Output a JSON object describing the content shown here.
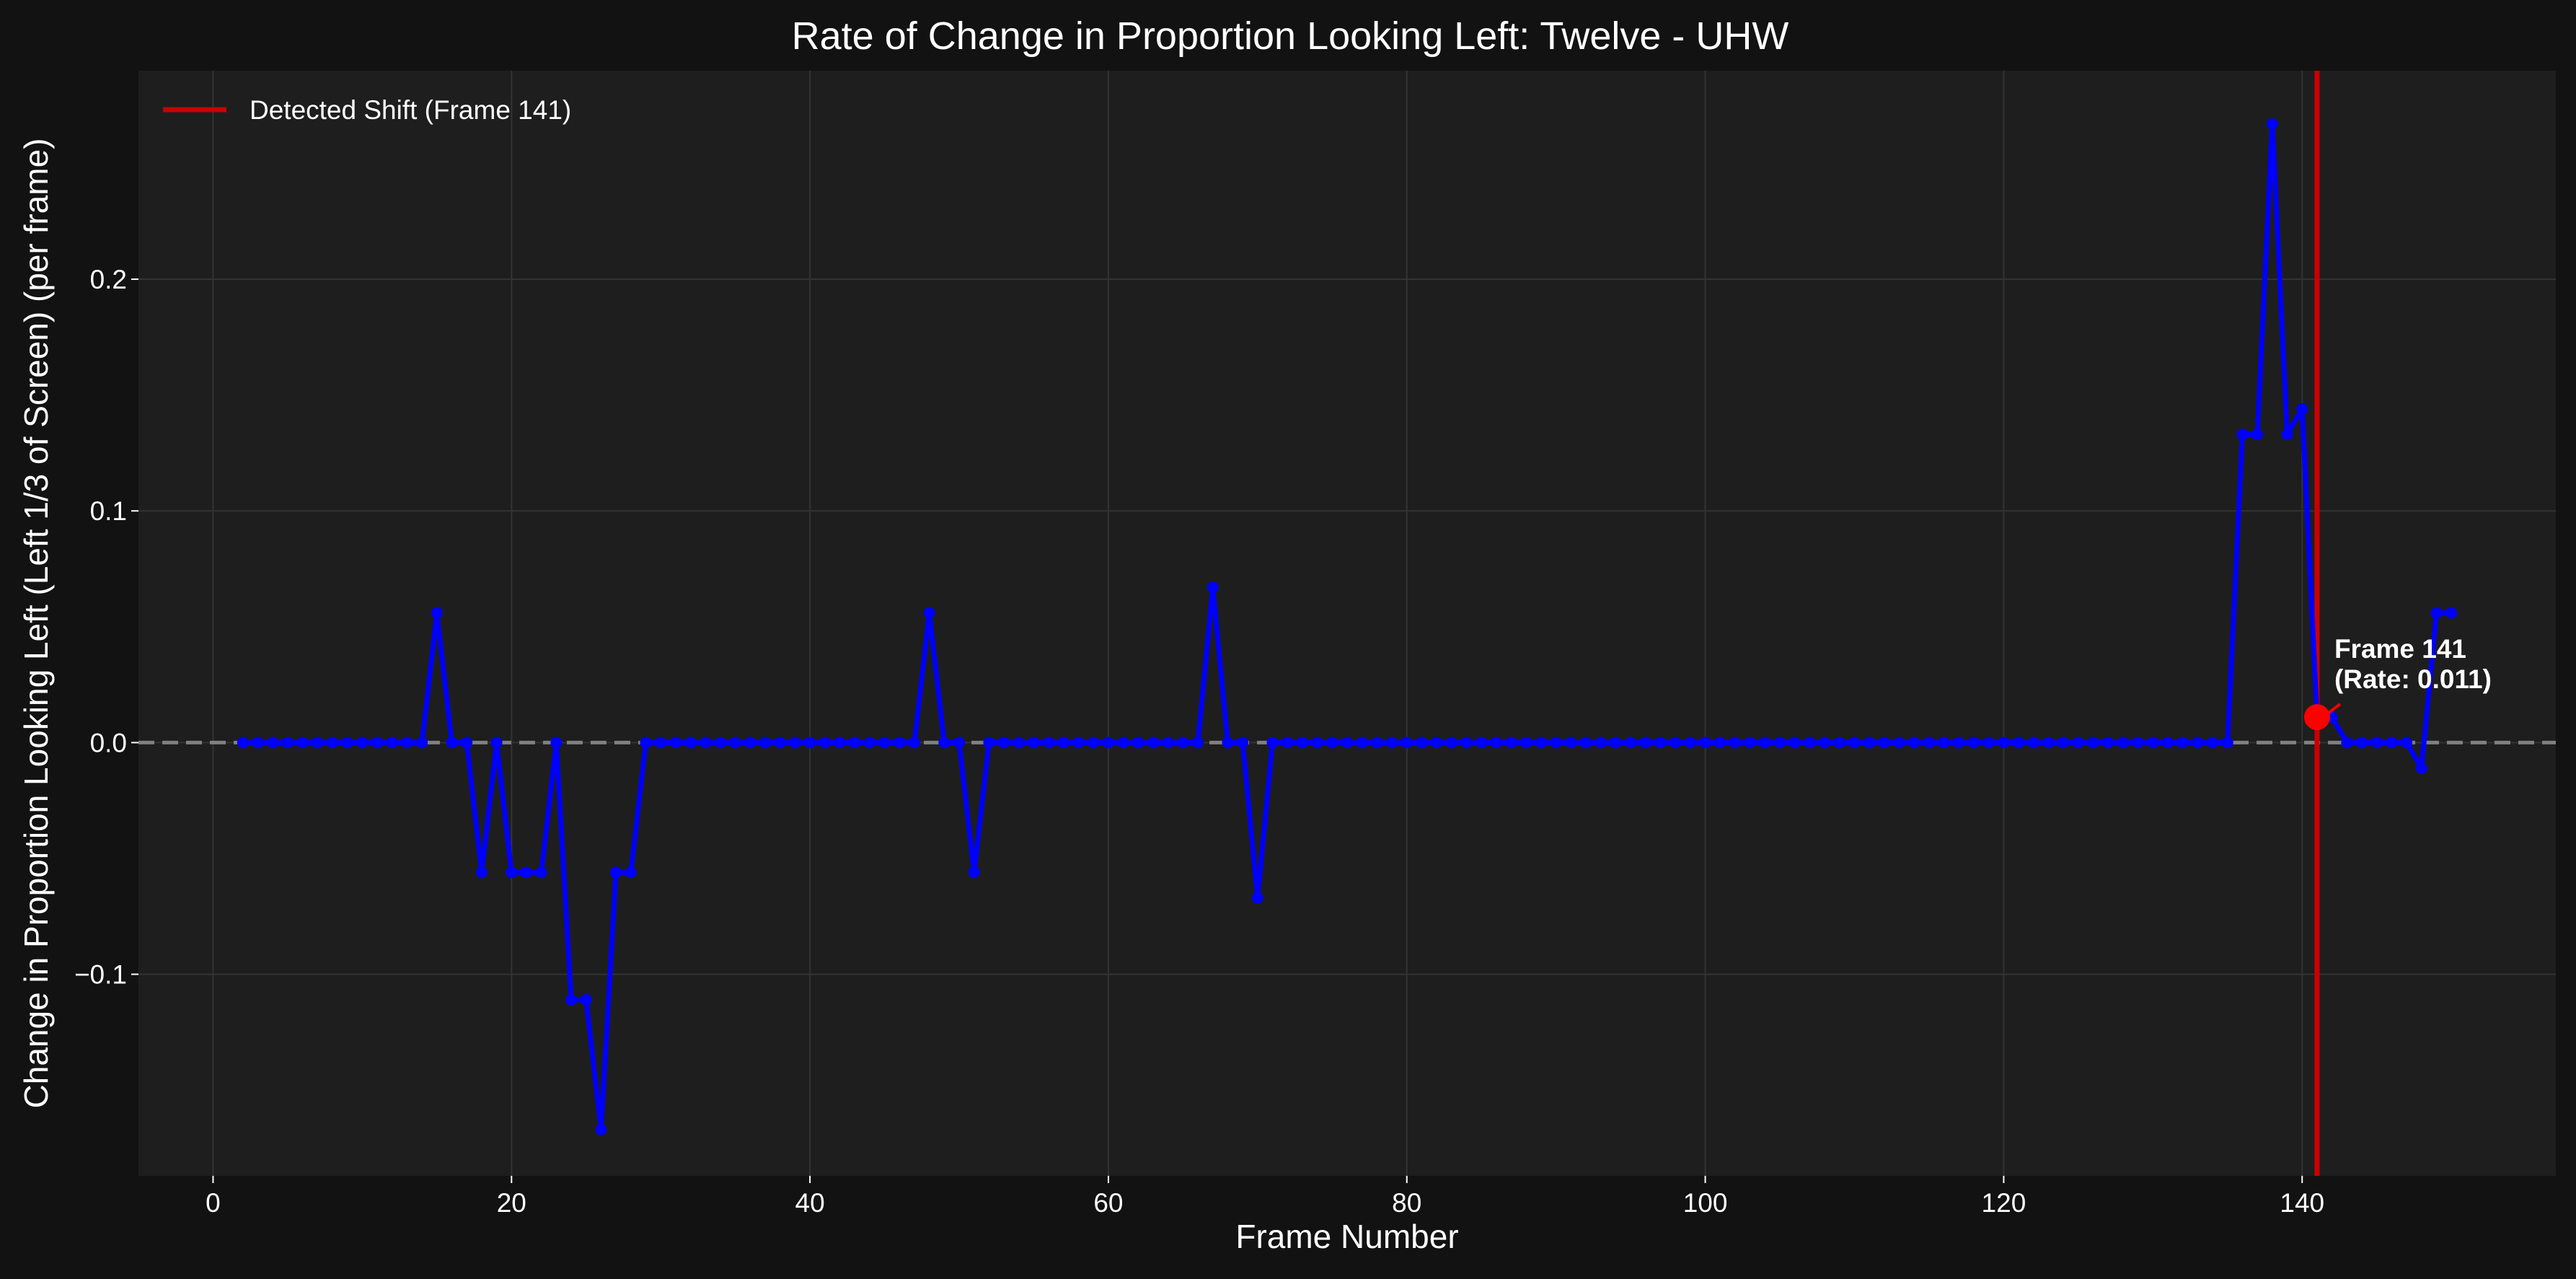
{
  "chart_data": {
    "type": "line",
    "title": "Rate of Change in Proportion Looking Left: Twelve - UHW",
    "xlabel": "Frame Number",
    "ylabel": "Change in Proportion Looking Left (Left 1/3 of Screen) (per frame)",
    "xlim": [
      -5,
      157
    ],
    "ylim": [
      -0.187,
      0.29
    ],
    "xticks": [
      0,
      20,
      40,
      60,
      80,
      100,
      120,
      140
    ],
    "yticks": [
      -0.1,
      0.0,
      0.1,
      0.2
    ],
    "ytick_labels": [
      "−0.1",
      "0.0",
      "0.1",
      "0.2"
    ],
    "grid": true,
    "legend_position": "top-left",
    "series": [
      {
        "color": "#0000ff",
        "x": [
          2,
          3,
          4,
          5,
          6,
          7,
          8,
          9,
          10,
          11,
          12,
          13,
          14,
          15,
          16,
          17,
          18,
          19,
          20,
          21,
          22,
          23,
          24,
          25,
          26,
          27,
          28,
          29,
          30,
          31,
          32,
          33,
          34,
          35,
          36,
          37,
          38,
          39,
          40,
          41,
          42,
          43,
          44,
          45,
          46,
          47,
          48,
          49,
          50,
          51,
          52,
          53,
          54,
          55,
          56,
          57,
          58,
          59,
          60,
          61,
          62,
          63,
          64,
          65,
          66,
          67,
          68,
          69,
          70,
          71,
          72,
          73,
          74,
          75,
          76,
          77,
          78,
          79,
          80,
          81,
          82,
          83,
          84,
          85,
          86,
          87,
          88,
          89,
          90,
          91,
          92,
          93,
          94,
          95,
          96,
          97,
          98,
          99,
          100,
          101,
          102,
          103,
          104,
          105,
          106,
          107,
          108,
          109,
          110,
          111,
          112,
          113,
          114,
          115,
          116,
          117,
          118,
          119,
          120,
          121,
          122,
          123,
          124,
          125,
          126,
          127,
          128,
          129,
          130,
          131,
          132,
          133,
          134,
          135,
          136,
          137,
          138,
          139,
          140,
          141,
          142,
          143,
          144,
          145,
          146,
          147,
          148,
          149,
          150
        ],
        "y": [
          0,
          0,
          0,
          0,
          0,
          0,
          0,
          0,
          0,
          0,
          0,
          0,
          0,
          0.056,
          0,
          0,
          -0.056,
          0,
          -0.056,
          -0.056,
          -0.056,
          0,
          -0.111,
          -0.111,
          -0.167,
          -0.056,
          -0.056,
          0,
          0,
          0,
          0,
          0,
          0,
          0,
          0,
          0,
          0,
          0,
          0,
          0,
          0,
          0,
          0,
          0,
          0,
          0,
          0.056,
          0,
          0,
          -0.056,
          0,
          0,
          0,
          0,
          0,
          0,
          0,
          0,
          0,
          0,
          0,
          0,
          0,
          0,
          0,
          0.067,
          0,
          0,
          -0.067,
          0,
          0,
          0,
          0,
          0,
          0,
          0,
          0,
          0,
          0,
          0,
          0,
          0,
          0,
          0,
          0,
          0,
          0,
          0,
          0,
          0,
          0,
          0,
          0,
          0,
          0,
          0,
          0,
          0,
          0,
          0,
          0,
          0,
          0,
          0,
          0,
          0,
          0,
          0,
          0,
          0,
          0,
          0,
          0,
          0,
          0,
          0,
          0,
          0,
          0,
          0,
          0,
          0,
          0,
          0,
          0,
          0,
          0,
          0,
          0,
          0,
          0,
          0,
          0,
          0,
          0.133,
          0.133,
          0.267,
          0.133,
          0.144,
          0.011,
          0.011,
          0,
          0,
          0,
          0,
          0,
          -0.011,
          0.056,
          0.056
        ]
      }
    ],
    "reference_lines": [
      {
        "orientation": "horizontal",
        "value": 0,
        "style": "dashed",
        "color": "#808080"
      },
      {
        "orientation": "vertical",
        "value": 141,
        "style": "solid",
        "color": "#cc0000",
        "label": "Detected Shift (Frame 141)"
      }
    ],
    "highlight_point": {
      "x": 141,
      "y": 0.011,
      "color": "#ff0000"
    },
    "annotation": {
      "line1": "Frame 141",
      "line2": "(Rate: 0.011)",
      "x": 141,
      "y": 0.011
    },
    "legend": [
      {
        "label": "Detected Shift (Frame 141)",
        "color": "#cc0000"
      }
    ]
  },
  "colors": {
    "figure_background": "#121212",
    "plot_background": "#1e1e1e",
    "grid": "#333333",
    "text": "#ffffff",
    "series": "#0000ff",
    "shift_line": "#cc0000",
    "highlight": "#ff0000",
    "zero_line": "#808080"
  }
}
